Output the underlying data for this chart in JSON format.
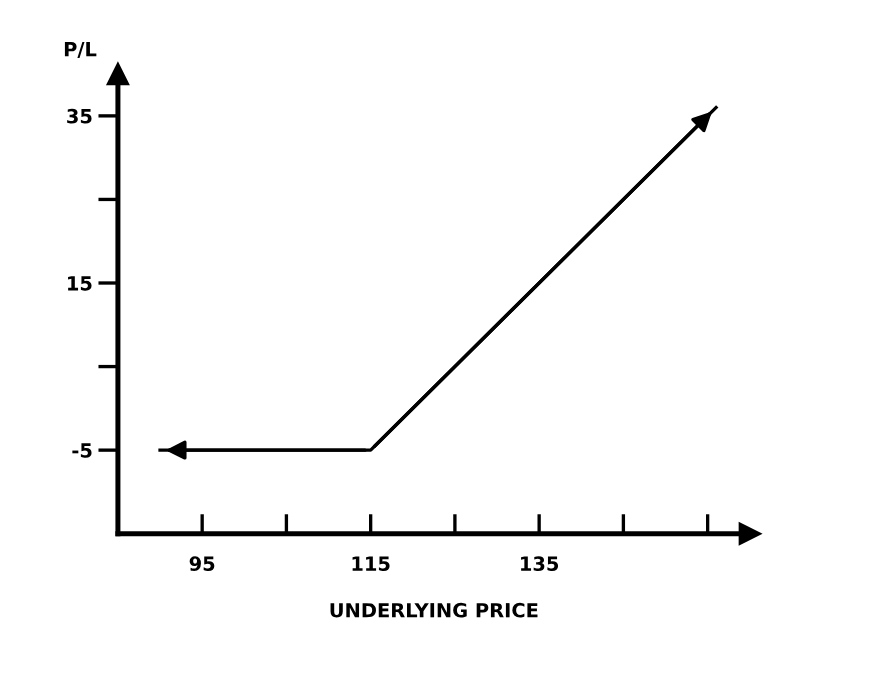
{
  "chart_data": {
    "type": "line",
    "xlabel": "UNDERLYING PRICE",
    "ylabel": "P/L",
    "x": [
      90,
      115,
      156
    ],
    "series": [
      {
        "color": "#000000",
        "values": [
          -5,
          -5,
          36
        ]
      }
    ],
    "xlim": [
      85,
      160
    ],
    "ylim": [
      -15,
      40
    ],
    "xticks": [
      95,
      {
        "value": 105,
        "label": null
      },
      115,
      {
        "value": 125,
        "label": null
      },
      135,
      {
        "value": 145,
        "label": null
      },
      {
        "value": 155,
        "label": null
      }
    ],
    "yticks": [
      -5,
      {
        "value": 5,
        "label": null
      },
      15,
      {
        "value": 25,
        "label": null
      },
      35
    ],
    "grid": false,
    "legend": false,
    "marker": "none",
    "line_style": "solid"
  }
}
